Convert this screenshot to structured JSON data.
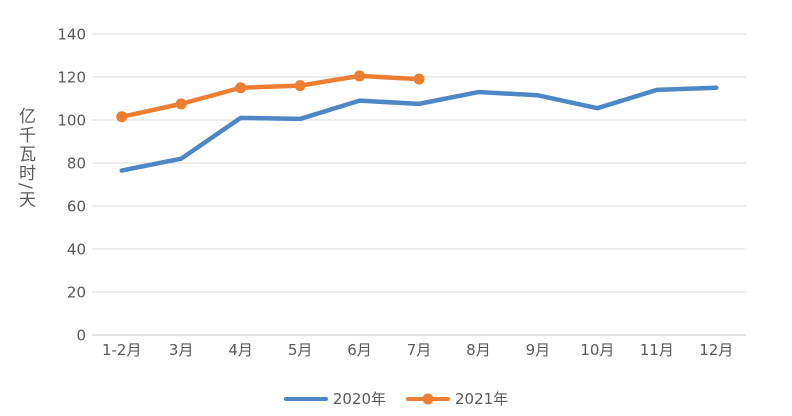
{
  "chart_data": {
    "type": "line",
    "categories": [
      "1-2月",
      "3月",
      "4月",
      "5月",
      "6月",
      "7月",
      "8月",
      "9月",
      "10月",
      "11月",
      "12月"
    ],
    "series": [
      {
        "name": "2020年",
        "color": "#4E87C6",
        "marker": false,
        "values": [
          76.5,
          82,
          101,
          100.5,
          109,
          107.5,
          113,
          111.5,
          105.5,
          114,
          115
        ]
      },
      {
        "name": "2021年",
        "color": "#ED7D31",
        "marker": true,
        "values": [
          101.5,
          107.5,
          115,
          116,
          120.5,
          119
        ]
      }
    ],
    "title": "",
    "xlabel": "",
    "ylabel": "亿千瓦时/天",
    "ylim": [
      0,
      140
    ],
    "ytick_step": 20,
    "yticks": [
      "0",
      "20",
      "40",
      "60",
      "80",
      "100",
      "120",
      "140"
    ],
    "grid": true,
    "legend_position": "bottom"
  },
  "colors": {
    "gridline": "#D9D9D9",
    "baseline": "#C6C6C6",
    "axis_text": "#595959",
    "background": "#FFFFFF"
  }
}
